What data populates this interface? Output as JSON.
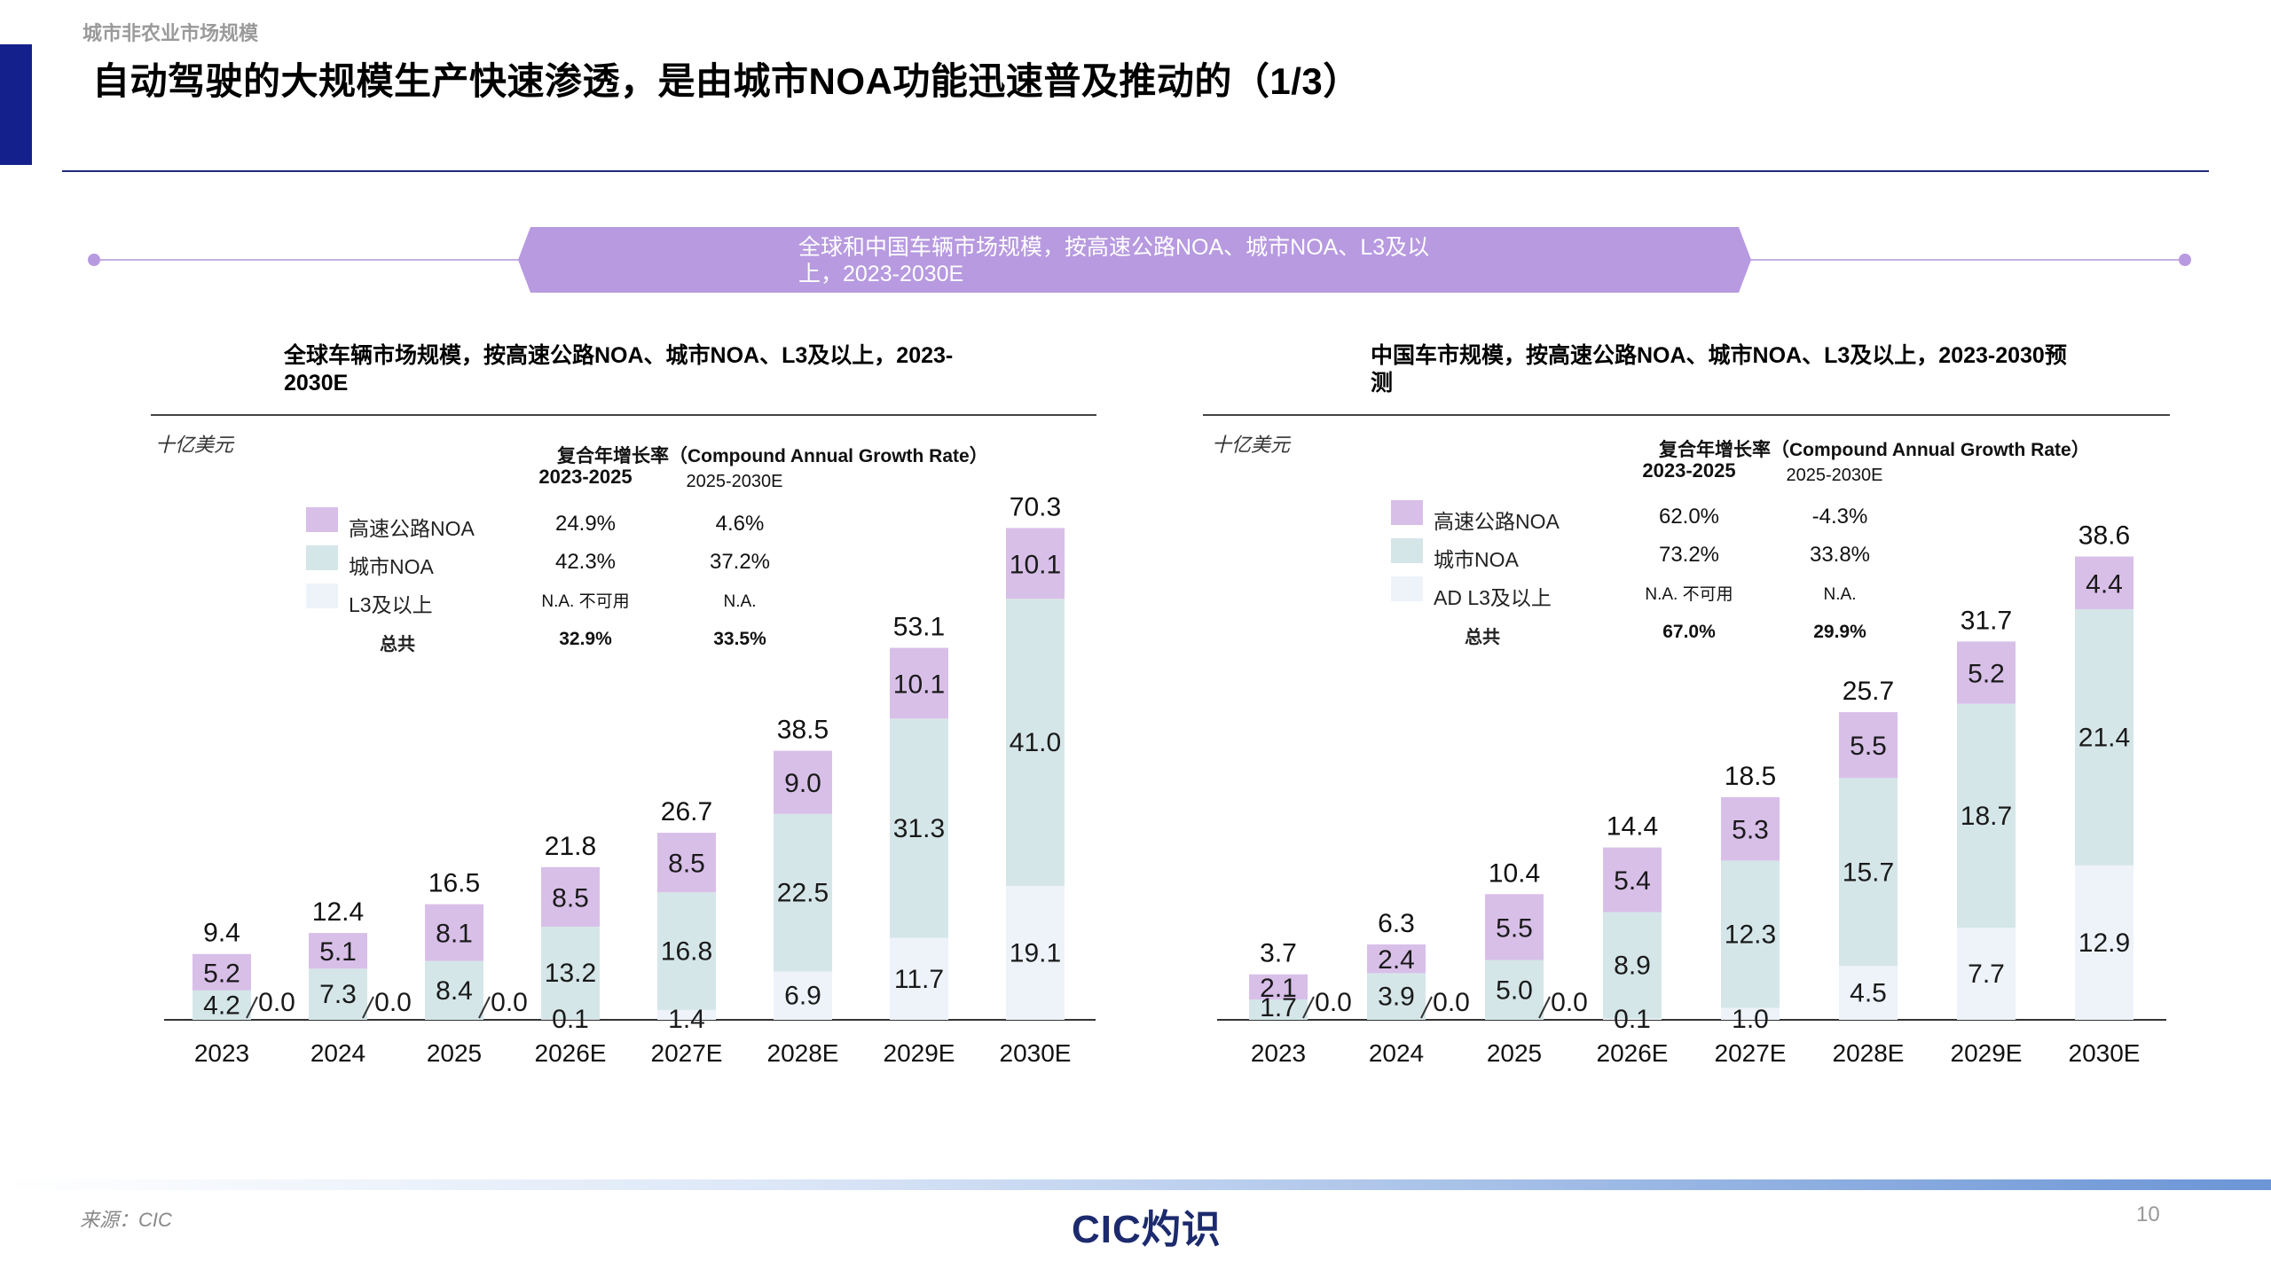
{
  "header": {
    "breadcrumb": "城市非农业市场规模",
    "title": "自动驾驶的大规模生产快速渗透，是由城市NOA功能迅速普及推动的（1/3）"
  },
  "banner": {
    "text": "全球和中国车辆市场规模，按高速公路NOA、城市NOA、L3及以上，2023-2030E"
  },
  "colors": {
    "highway_noa": "#d8bfe8",
    "city_noa": "#d5e6e8",
    "l3": "#eef3fa",
    "accent_navy": "#14208c",
    "banner": "#b79ae0"
  },
  "footer": {
    "source": "来源：CIC",
    "logo": "CIC灼识",
    "page": "10"
  },
  "chart_data": [
    {
      "type": "bar",
      "stacked": true,
      "title": "全球车辆市场规模，按高速公路NOA、城市NOA、L3及以上，2023-2030E",
      "unit": "十亿美元",
      "categories": [
        "2023",
        "2024",
        "2025",
        "2026E",
        "2027E",
        "2028E",
        "2029E",
        "2030E"
      ],
      "series": [
        {
          "name": "L3及以上",
          "values": [
            0.0,
            0.0,
            0.0,
            0.1,
            1.4,
            6.9,
            11.7,
            19.1
          ]
        },
        {
          "name": "城市NOA",
          "values": [
            4.2,
            7.3,
            8.4,
            13.2,
            16.8,
            22.5,
            31.3,
            41.0
          ]
        },
        {
          "name": "高速公路NOA",
          "values": [
            5.2,
            5.1,
            8.1,
            8.5,
            8.5,
            9.0,
            10.1,
            10.1
          ]
        }
      ],
      "totals": [
        9.4,
        12.4,
        16.5,
        21.8,
        26.7,
        38.5,
        53.1,
        70.3
      ],
      "cagr_table": {
        "header": "复合年增长率（Compound Annual Growth Rate）",
        "periods": [
          "2023-2025",
          "2025-2030E"
        ],
        "rows": [
          {
            "label": "高速公路NOA",
            "values": [
              "24.9%",
              "4.6%"
            ]
          },
          {
            "label": "城市NOA",
            "values": [
              "42.3%",
              "37.2%"
            ]
          },
          {
            "label": "L3及以上",
            "values": [
              "N.A. 不可用",
              "N.A."
            ]
          },
          {
            "label": "总共",
            "values": [
              "32.9%",
              "33.5%"
            ]
          }
        ]
      }
    },
    {
      "type": "bar",
      "stacked": true,
      "title": "中国车市规模，按高速公路NOA、城市NOA、L3及以上，2023-2030预测",
      "unit": "十亿美元",
      "categories": [
        "2023",
        "2024",
        "2025",
        "2026E",
        "2027E",
        "2028E",
        "2029E",
        "2030E"
      ],
      "series": [
        {
          "name": "AD L3及以上",
          "values": [
            0.0,
            0.0,
            0.0,
            0.1,
            1.0,
            4.5,
            7.7,
            12.9
          ]
        },
        {
          "name": "城市NOA",
          "values": [
            1.7,
            3.9,
            5.0,
            8.9,
            12.3,
            15.7,
            18.7,
            21.4
          ]
        },
        {
          "name": "高速公路NOA",
          "values": [
            2.1,
            2.4,
            5.5,
            5.4,
            5.3,
            5.5,
            5.2,
            4.4
          ]
        }
      ],
      "totals": [
        3.7,
        6.3,
        10.4,
        14.4,
        18.5,
        25.7,
        31.7,
        38.6
      ],
      "cagr_table": {
        "header": "复合年增长率（Compound Annual Growth Rate）",
        "periods": [
          "2023-2025",
          "2025-2030E"
        ],
        "rows": [
          {
            "label": "高速公路NOA",
            "values": [
              "62.0%",
              "-4.3%"
            ]
          },
          {
            "label": "城市NOA",
            "values": [
              "73.2%",
              "33.8%"
            ]
          },
          {
            "label": "AD L3及以上",
            "values": [
              "N.A. 不可用",
              "N.A."
            ]
          },
          {
            "label": "总共",
            "values": [
              "67.0%",
              "29.9%"
            ]
          }
        ]
      }
    }
  ]
}
